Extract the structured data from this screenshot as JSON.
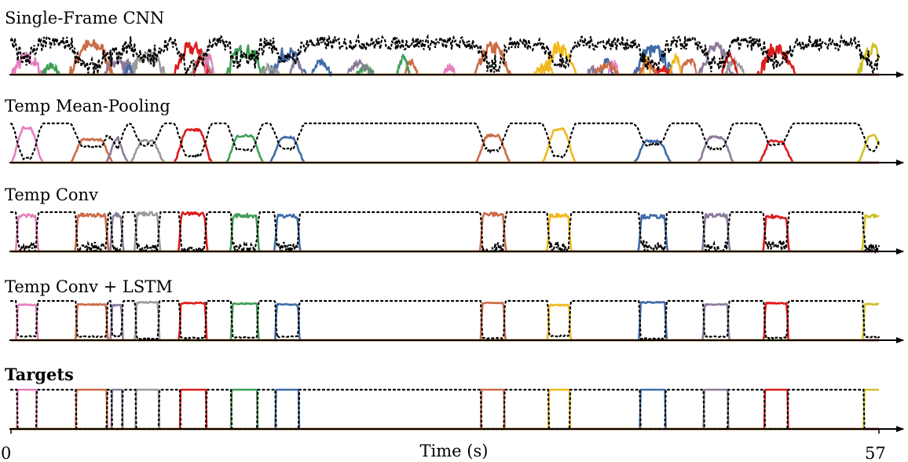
{
  "chart_data": {
    "type": "line",
    "xlabel": "Time (s)",
    "xlim": [
      0,
      57
    ],
    "xticks": [
      "0",
      "57"
    ],
    "colors": {
      "pink": "#e67fbf",
      "orange": "#cc6b45",
      "gray": "#9a9a9a",
      "red": "#dd1c1c",
      "green": "#3f9e56",
      "blue": "#3f6ba8",
      "yellow": "#f2b91e",
      "purple": "#8c7a9a",
      "olive": "#cfc229",
      "target_dotted": "#000000"
    },
    "segments": [
      {
        "start": 0.4,
        "end": 1.7,
        "color": "pink"
      },
      {
        "start": 4.3,
        "end": 6.3,
        "color": "orange"
      },
      {
        "start": 6.6,
        "end": 7.3,
        "color": "purple"
      },
      {
        "start": 8.2,
        "end": 9.7,
        "color": "gray"
      },
      {
        "start": 11.1,
        "end": 12.8,
        "color": "red"
      },
      {
        "start": 14.5,
        "end": 16.2,
        "color": "green"
      },
      {
        "start": 17.4,
        "end": 18.9,
        "color": "blue"
      },
      {
        "start": 30.9,
        "end": 32.4,
        "color": "orange"
      },
      {
        "start": 35.3,
        "end": 36.7,
        "color": "yellow"
      },
      {
        "start": 41.3,
        "end": 43.0,
        "color": "blue"
      },
      {
        "start": 45.5,
        "end": 47.1,
        "color": "purple"
      },
      {
        "start": 49.5,
        "end": 51.0,
        "color": "red"
      },
      {
        "start": 56.0,
        "end": 57.1,
        "color": "olive"
      }
    ],
    "panels": [
      {
        "title": "Single-Frame CNN",
        "bold": false,
        "quality": 0
      },
      {
        "title": "Temp Mean-Pooling",
        "bold": false,
        "quality": 1
      },
      {
        "title": "Temp Conv",
        "bold": false,
        "quality": 2
      },
      {
        "title": "Temp Conv + LSTM",
        "bold": false,
        "quality": 3
      },
      {
        "title": "Targets",
        "bold": true,
        "quality": 4
      }
    ]
  }
}
